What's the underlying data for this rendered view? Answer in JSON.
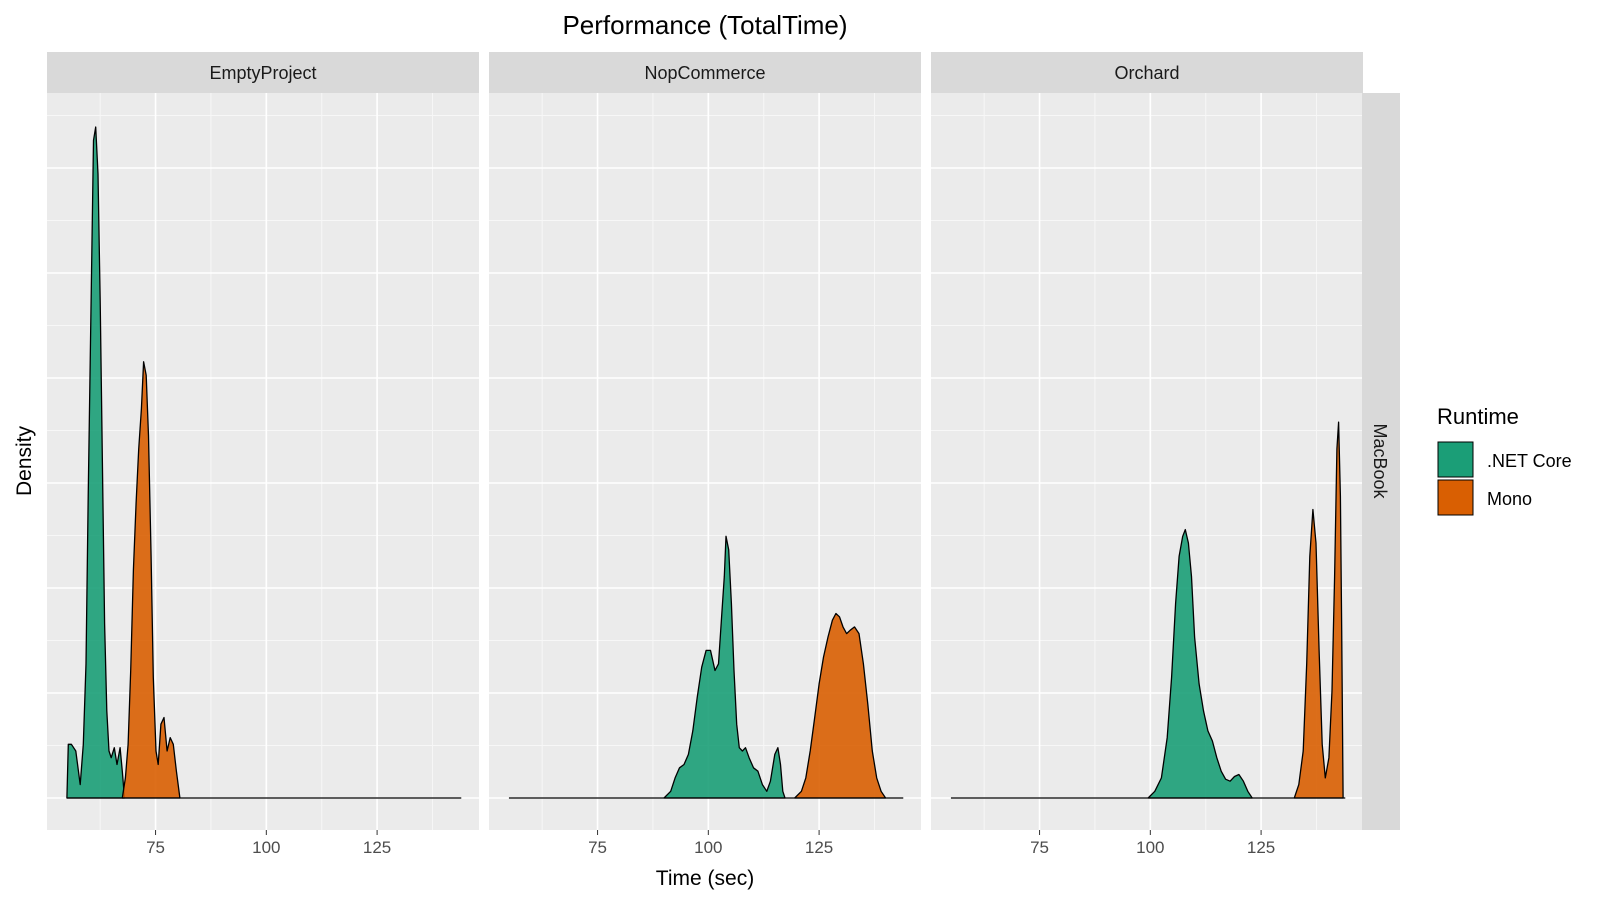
{
  "chart_data": {
    "type": "area",
    "subtype": "density",
    "title": "Performance (TotalTime)",
    "xlabel": "Time (sec)",
    "ylabel": "Density",
    "xlim": [
      50.5,
      148
    ],
    "xticks": [
      75,
      100,
      125
    ],
    "y_ticks_labeled": false,
    "grid": true,
    "legend": {
      "title": "Runtime",
      "position": "right"
    },
    "row_strip": "MacBook",
    "colors": {
      ".NET Core": "#1b9e77",
      "Mono": "#d95f02"
    },
    "facets": [
      {
        "name": "EmptyProject",
        "series": [
          {
            "name": ".NET Core",
            "points": [
              [
                55,
                0
              ],
              [
                55.3,
                0.08
              ],
              [
                56,
                0.08
              ],
              [
                57,
                0.07
              ],
              [
                58,
                0.02
              ],
              [
                58.7,
                0.08
              ],
              [
                59.3,
                0.2
              ],
              [
                59.8,
                0.45
              ],
              [
                60.4,
                0.72
              ],
              [
                61,
                0.98
              ],
              [
                61.5,
                1.0
              ],
              [
                62,
                0.93
              ],
              [
                62.5,
                0.74
              ],
              [
                63,
                0.5
              ],
              [
                63.5,
                0.26
              ],
              [
                64,
                0.13
              ],
              [
                64.5,
                0.07
              ],
              [
                65,
                0.06
              ],
              [
                65.7,
                0.075
              ],
              [
                66.3,
                0.05
              ],
              [
                67,
                0.075
              ],
              [
                67.5,
                0.04
              ],
              [
                68,
                0
              ]
            ]
          },
          {
            "name": "Mono",
            "points": [
              [
                67.5,
                0
              ],
              [
                68.2,
                0.03
              ],
              [
                68.8,
                0.08
              ],
              [
                69.4,
                0.19
              ],
              [
                70,
                0.34
              ],
              [
                70.6,
                0.44
              ],
              [
                71.2,
                0.52
              ],
              [
                71.8,
                0.58
              ],
              [
                72.3,
                0.65
              ],
              [
                72.9,
                0.63
              ],
              [
                73.4,
                0.54
              ],
              [
                74,
                0.36
              ],
              [
                74.5,
                0.18
              ],
              [
                75.1,
                0.07
              ],
              [
                75.6,
                0.05
              ],
              [
                76.2,
                0.11
              ],
              [
                76.9,
                0.12
              ],
              [
                77.6,
                0.07
              ],
              [
                78.3,
                0.09
              ],
              [
                79,
                0.08
              ],
              [
                79.7,
                0.04
              ],
              [
                80.5,
                0
              ]
            ]
          }
        ]
      },
      {
        "name": "NopCommerce",
        "series": [
          {
            "name": ".NET Core",
            "points": [
              [
                90,
                0
              ],
              [
                91.5,
                0.01
              ],
              [
                92.5,
                0.03
              ],
              [
                93.5,
                0.045
              ],
              [
                94.5,
                0.05
              ],
              [
                95.5,
                0.065
              ],
              [
                96.5,
                0.1
              ],
              [
                97.5,
                0.15
              ],
              [
                98.5,
                0.195
              ],
              [
                99.5,
                0.22
              ],
              [
                100.5,
                0.22
              ],
              [
                101.5,
                0.19
              ],
              [
                102.3,
                0.2
              ],
              [
                103,
                0.27
              ],
              [
                103.6,
                0.33
              ],
              [
                104,
                0.39
              ],
              [
                104.6,
                0.37
              ],
              [
                105.2,
                0.29
              ],
              [
                105.8,
                0.19
              ],
              [
                106.4,
                0.11
              ],
              [
                107,
                0.075
              ],
              [
                107.7,
                0.07
              ],
              [
                108.4,
                0.075
              ],
              [
                109.2,
                0.06
              ],
              [
                110.2,
                0.045
              ],
              [
                111.2,
                0.04
              ],
              [
                112.2,
                0.02
              ],
              [
                113.2,
                0.01
              ],
              [
                114,
                0.025
              ],
              [
                115,
                0.065
              ],
              [
                115.7,
                0.075
              ],
              [
                116.3,
                0.05
              ],
              [
                116.8,
                0.01
              ],
              [
                117.3,
                0
              ]
            ]
          },
          {
            "name": "Mono",
            "points": [
              [
                119.5,
                0
              ],
              [
                121,
                0.01
              ],
              [
                122,
                0.03
              ],
              [
                123,
                0.07
              ],
              [
                124,
                0.12
              ],
              [
                125,
                0.17
              ],
              [
                126,
                0.21
              ],
              [
                127,
                0.24
              ],
              [
                128,
                0.265
              ],
              [
                128.8,
                0.275
              ],
              [
                129.6,
                0.27
              ],
              [
                130.4,
                0.255
              ],
              [
                131.2,
                0.245
              ],
              [
                132,
                0.25
              ],
              [
                133,
                0.255
              ],
              [
                134,
                0.245
              ],
              [
                135,
                0.2
              ],
              [
                136,
                0.14
              ],
              [
                137,
                0.07
              ],
              [
                138,
                0.03
              ],
              [
                139,
                0.01
              ],
              [
                140,
                0
              ]
            ]
          }
        ]
      },
      {
        "name": "Orchard",
        "series": [
          {
            "name": ".NET Core",
            "points": [
              [
                99.5,
                0
              ],
              [
                101,
                0.01
              ],
              [
                102.5,
                0.03
              ],
              [
                103.8,
                0.09
              ],
              [
                104.8,
                0.18
              ],
              [
                105.7,
                0.29
              ],
              [
                106.5,
                0.36
              ],
              [
                107.3,
                0.39
              ],
              [
                107.9,
                0.4
              ],
              [
                108.6,
                0.38
              ],
              [
                109.3,
                0.33
              ],
              [
                110,
                0.24
              ],
              [
                111,
                0.17
              ],
              [
                112,
                0.13
              ],
              [
                113,
                0.1
              ],
              [
                114,
                0.085
              ],
              [
                115,
                0.06
              ],
              [
                116,
                0.04
              ],
              [
                117,
                0.028
              ],
              [
                118,
                0.025
              ],
              [
                119,
                0.032
              ],
              [
                120,
                0.035
              ],
              [
                121,
                0.025
              ],
              [
                122,
                0.01
              ],
              [
                123,
                0
              ]
            ]
          },
          {
            "name": "Mono",
            "points": [
              [
                132.5,
                0
              ],
              [
                133.5,
                0.02
              ],
              [
                134.5,
                0.07
              ],
              [
                135.3,
                0.2
              ],
              [
                136,
                0.36
              ],
              [
                136.7,
                0.43
              ],
              [
                137.4,
                0.38
              ],
              [
                138.1,
                0.22
              ],
              [
                138.8,
                0.08
              ],
              [
                139.5,
                0.03
              ],
              [
                140.3,
                0.06
              ],
              [
                141,
                0.16
              ],
              [
                141.6,
                0.33
              ],
              [
                142.1,
                0.52
              ],
              [
                142.5,
                0.56
              ],
              [
                142.9,
                0.45
              ],
              [
                143.2,
                0.25
              ],
              [
                143.5,
                0
              ]
            ]
          }
        ]
      }
    ]
  }
}
